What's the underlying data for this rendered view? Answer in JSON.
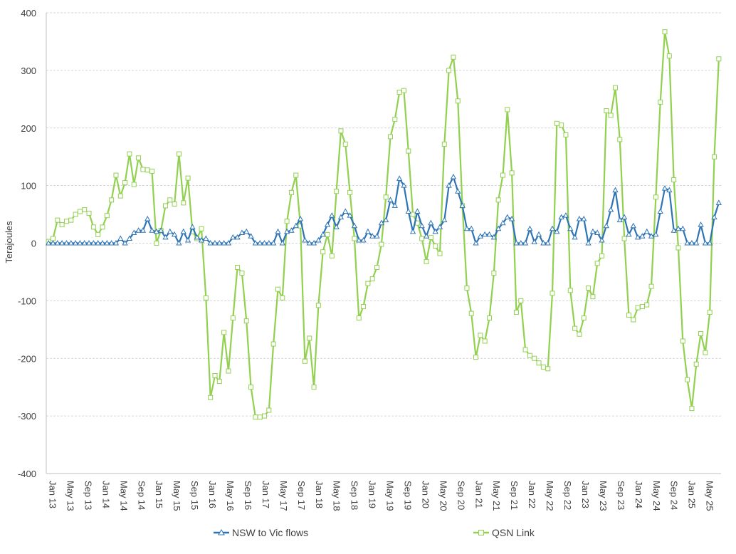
{
  "chart_data": {
    "type": "line",
    "ylabel": "Terajoules",
    "ylim": [
      -400,
      400
    ],
    "yticks": [
      400,
      300,
      200,
      100,
      0,
      -100,
      -200,
      -300,
      -400
    ],
    "grid": true,
    "legend_position": "bottom",
    "x_tick_labels": [
      "Jan 13",
      "May 13",
      "Sep 13",
      "Jan 14",
      "May 14",
      "Sep 14",
      "Jan 15",
      "May 15",
      "Sep 15",
      "Jan 16",
      "May 16",
      "Sep 16",
      "Jan 17",
      "May 17",
      "Sep 17",
      "Jan 18",
      "May 18",
      "Sep 18",
      "Jan 19",
      "May 19",
      "Sep 19",
      "Jan 20",
      "May 20",
      "Sep 20",
      "Jan 21",
      "May 21",
      "Sep 21",
      "Jan 22",
      "May 22",
      "Sep 22",
      "Jan 23",
      "May 23",
      "Sep 23",
      "Jan 24",
      "May 24",
      "Sep 24",
      "Jan 25",
      "May 25"
    ],
    "series": [
      {
        "name": "NSW to Vic flows",
        "color": "#2E74B5",
        "marker": "triangle",
        "values": [
          0,
          0,
          0,
          0,
          0,
          0,
          0,
          0,
          0,
          0,
          0,
          0,
          0,
          0,
          0,
          0,
          8,
          0,
          8,
          18,
          22,
          22,
          42,
          22,
          20,
          22,
          10,
          20,
          15,
          0,
          20,
          5,
          28,
          10,
          5,
          8,
          0,
          0,
          0,
          0,
          0,
          10,
          10,
          18,
          20,
          12,
          0,
          0,
          0,
          0,
          0,
          20,
          0,
          20,
          22,
          30,
          42,
          5,
          0,
          0,
          5,
          15,
          32,
          48,
          28,
          45,
          55,
          48,
          30,
          5,
          5,
          20,
          12,
          12,
          35,
          40,
          75,
          65,
          112,
          100,
          55,
          20,
          55,
          30,
          12,
          35,
          20,
          28,
          40,
          100,
          115,
          90,
          65,
          25,
          25,
          0,
          12,
          15,
          15,
          10,
          25,
          35,
          45,
          42,
          0,
          0,
          0,
          25,
          2,
          15,
          0,
          0,
          25,
          20,
          45,
          48,
          25,
          10,
          42,
          42,
          0,
          20,
          18,
          5,
          30,
          58,
          92,
          40,
          45,
          15,
          30,
          10,
          12,
          20,
          12,
          15,
          55,
          95,
          92,
          22,
          25,
          25,
          0,
          0,
          0,
          32,
          0,
          0,
          45,
          70
        ]
      },
      {
        "name": "QSN Link",
        "color": "#92D050",
        "marker": "square",
        "values": [
          3,
          8,
          40,
          32,
          38,
          40,
          50,
          55,
          58,
          52,
          28,
          15,
          28,
          48,
          75,
          118,
          82,
          105,
          155,
          102,
          148,
          128,
          127,
          125,
          0,
          22,
          65,
          75,
          68,
          155,
          70,
          113,
          20,
          8,
          25,
          -95,
          -268,
          -230,
          -240,
          -155,
          -222,
          -130,
          -42,
          -52,
          -135,
          -250,
          -302,
          -302,
          -300,
          -290,
          -175,
          -80,
          -95,
          38,
          88,
          118,
          30,
          -205,
          -165,
          -250,
          -108,
          -15,
          15,
          -22,
          90,
          195,
          172,
          88,
          8,
          -130,
          -110,
          -70,
          -62,
          -42,
          -2,
          80,
          185,
          215,
          262,
          265,
          160,
          50,
          35,
          8,
          -32,
          10,
          -5,
          -18,
          172,
          300,
          323,
          247,
          65,
          -78,
          -122,
          -198,
          -160,
          -170,
          -130,
          -52,
          75,
          118,
          232,
          122,
          -120,
          -100,
          -185,
          -195,
          -200,
          -208,
          -215,
          -218,
          -87,
          208,
          205,
          188,
          -82,
          -148,
          -158,
          -130,
          -78,
          -93,
          -35,
          -22,
          230,
          222,
          270,
          180,
          8,
          -125,
          -133,
          -112,
          -110,
          -107,
          -75,
          80,
          245,
          367,
          325,
          110,
          -8,
          -170,
          -237,
          -287,
          -210,
          -157,
          -190,
          -120,
          150,
          320
        ]
      }
    ]
  }
}
